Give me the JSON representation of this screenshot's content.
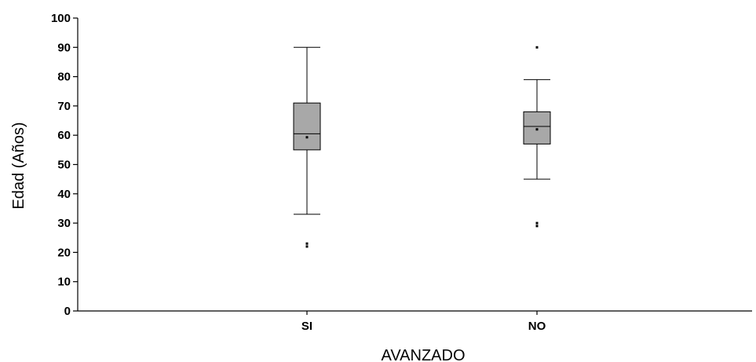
{
  "chart_data": {
    "type": "box",
    "title": "",
    "xlabel": "AVANZADO",
    "ylabel": "Edad (Años)",
    "ylim": [
      0,
      100
    ],
    "yticks": [
      0,
      10,
      20,
      30,
      40,
      50,
      60,
      70,
      80,
      90,
      100
    ],
    "grid": false,
    "legend": "none",
    "categories": [
      "SI",
      "NO"
    ],
    "box_fill": "#a8a8a8",
    "boxes": [
      {
        "category": "SI",
        "whisker_low": 33,
        "q1": 55,
        "median": 60.5,
        "q3": 71,
        "whisker_high": 90,
        "mean": 59.3,
        "outliers": [
          22,
          23
        ]
      },
      {
        "category": "NO",
        "whisker_low": 45,
        "q1": 57,
        "median": 63,
        "q3": 68,
        "whisker_high": 79,
        "mean": 62,
        "outliers": [
          29,
          30,
          90
        ]
      }
    ]
  }
}
